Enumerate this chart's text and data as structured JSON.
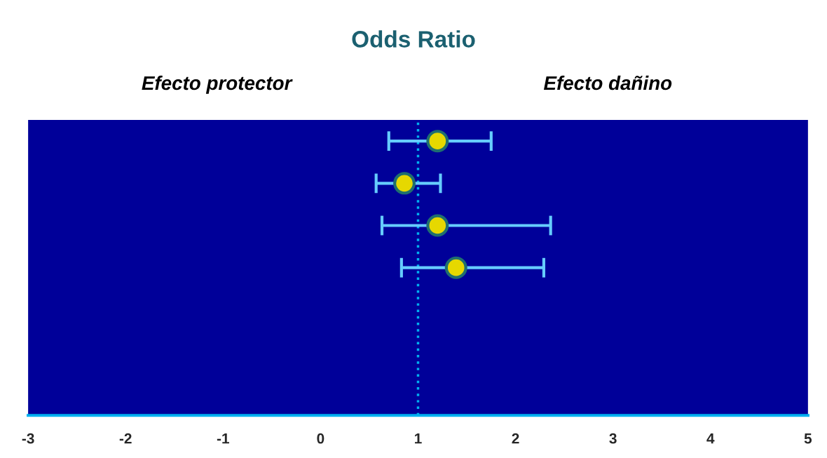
{
  "chart_data": {
    "type": "scatter",
    "orientation": "horizontal",
    "title": "Odds Ratio",
    "annotations": [
      "Efecto protector",
      "Efecto dañino"
    ],
    "categories": [
      null,
      null,
      null,
      null,
      null,
      null,
      null
    ],
    "series": [
      {
        "color": "#e6d800",
        "values": [
          1.2,
          0.86,
          1.2,
          1.39,
          null,
          null,
          null
        ],
        "errors": [
          [
            0.7,
            1.75
          ],
          [
            0.57,
            1.23
          ],
          [
            0.63,
            2.36
          ],
          [
            0.83,
            2.29
          ],
          null,
          null,
          null
        ]
      }
    ],
    "xlim": [
      -3,
      5
    ],
    "xticks": [
      -3,
      -2,
      -1,
      0,
      1,
      2,
      3,
      4,
      5
    ],
    "ref_lines": [
      {
        "axis": "x",
        "value": 1,
        "color": "#00b0f0",
        "line_style": "dotted"
      }
    ],
    "tick_labels": "x",
    "grid": false,
    "legend": false,
    "marker": "circle"
  }
}
